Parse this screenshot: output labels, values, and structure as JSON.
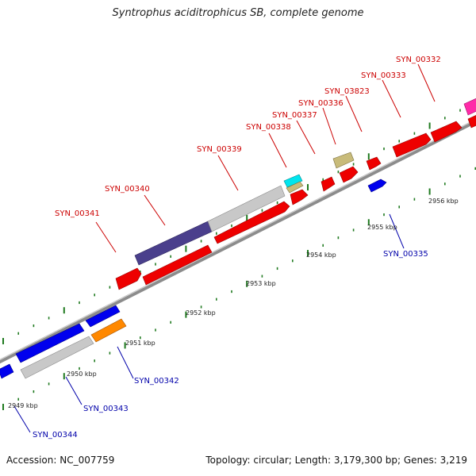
{
  "title": "Syntrophus aciditrophicus SB, complete genome",
  "footer": {
    "accession": "Accession: NC_007759",
    "topology": "Topology: circular; Length: 3,179,300 bp; Genes: 3,219"
  },
  "colors": {
    "forward_label": "#cc0000",
    "reverse_label": "#0000aa",
    "backbone": "#8c8c8c",
    "tick": "#1f7a1f"
  },
  "forward_gene_labels": [
    "SYN_00341",
    "SYN_00340",
    "SYN_00339",
    "SYN_00338",
    "SYN_00337",
    "SYN_00336",
    "SYN_03823",
    "SYN_00333",
    "SYN_00332"
  ],
  "reverse_gene_labels": [
    "SYN_00335",
    "SYN_00342",
    "SYN_00343",
    "SYN_00344"
  ],
  "kbp_labels": [
    "2949 kbp",
    "2950 kbp",
    "2951 kbp",
    "2952 kbp",
    "2953 kbp",
    "2954 kbp",
    "2955 kbp",
    "2956 kbp"
  ]
}
